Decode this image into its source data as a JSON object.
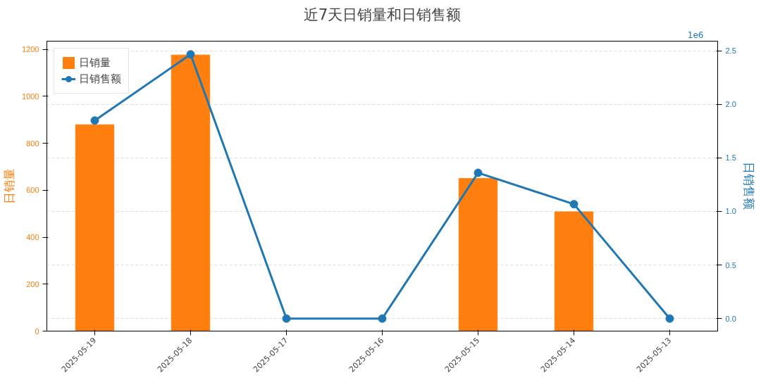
{
  "chart_data": {
    "type": "bar",
    "title": "近7天日销量和日销售额",
    "ylabel": "日销量",
    "y2label": "日销售额",
    "categories": [
      "2025-05-19",
      "2025-05-18",
      "2025-05-17",
      "2025-05-16",
      "2025-05-15",
      "2025-05-14",
      "2025-05-13"
    ],
    "series": [
      {
        "name": "日销量",
        "color": "#ff7f0e",
        "values": [
          879,
          1176,
          0,
          0,
          650,
          508,
          0
        ]
      },
      {
        "name": "日销售额",
        "type": "line",
        "axis": "y2",
        "color": "#1f77b4",
        "marker": "circle",
        "values": [
          1.849,
          2.467,
          0,
          0,
          1.361,
          1.068,
          0
        ]
      }
    ],
    "ylim": [
      0,
      1235
    ],
    "yticks": [
      0,
      200,
      400,
      600,
      800,
      1000,
      1200
    ],
    "y2lim": [
      -0.117,
      2.59
    ],
    "y2ticks": [
      {
        "value": 0,
        "label": "0.0"
      },
      {
        "value": 0.5,
        "label": "0.5"
      },
      {
        "value": 1.0,
        "label": "1.0"
      },
      {
        "value": 1.5,
        "label": "1.5"
      },
      {
        "value": 2.0,
        "label": "2.0"
      },
      {
        "value": 2.5,
        "label": "2.5"
      }
    ],
    "annotations": [
      "1e6"
    ],
    "grid": "y",
    "legend": "top left"
  }
}
